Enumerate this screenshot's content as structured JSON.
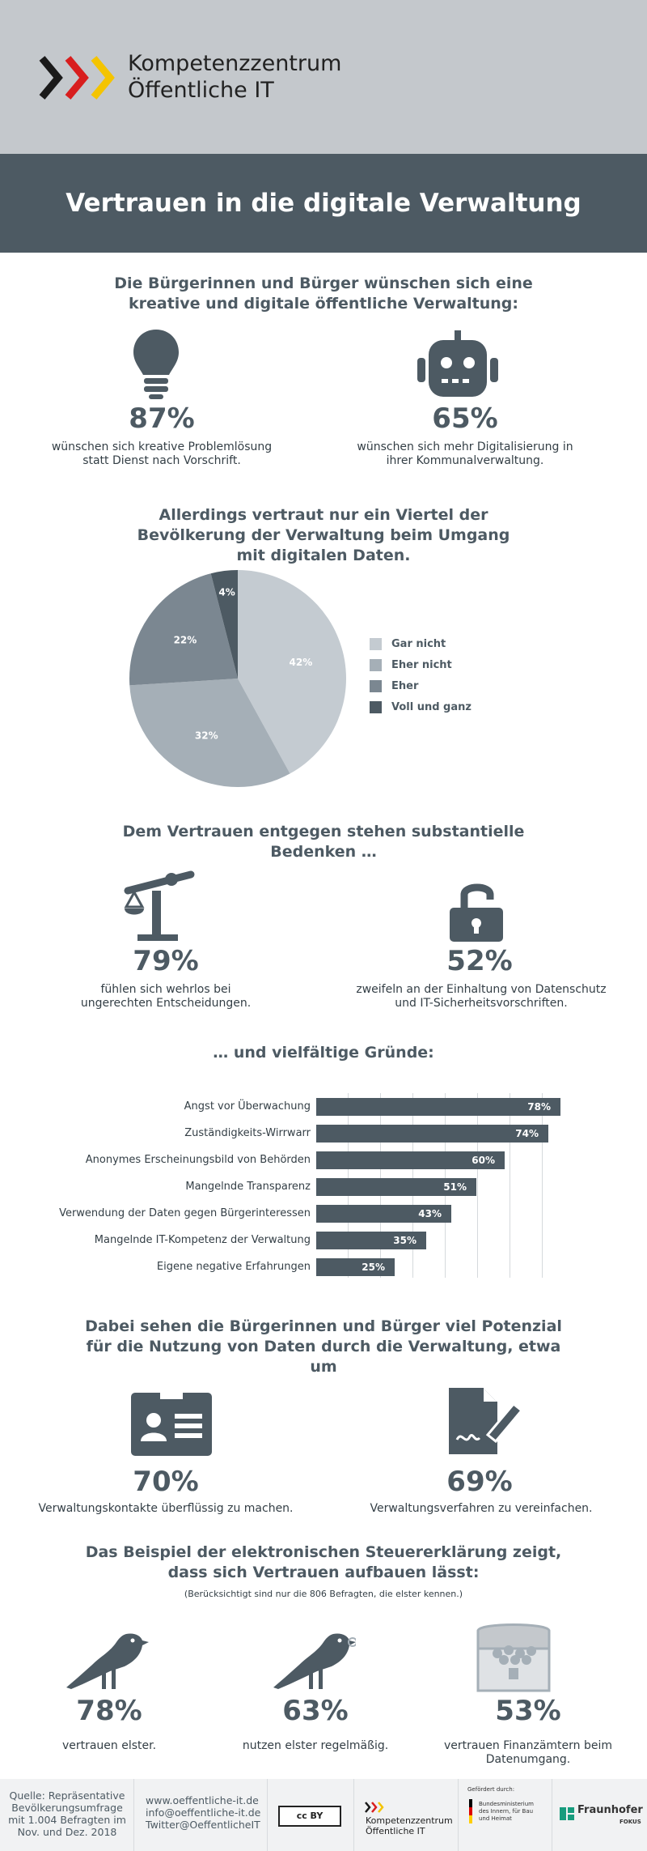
{
  "header": {
    "brand_line1": "Kompetenzzentrum",
    "brand_line2": "Öffentliche IT",
    "title": "Vertrauen in die digitale Verwaltung"
  },
  "section1": {
    "heading": "Die Bürgerinnen und Bürger wünschen sich eine kreative und digitale öffentliche Verwaltung:",
    "stats": [
      {
        "value": "87%",
        "caption": "wünschen sich kreative Problemlösung statt Dienst nach Vorschrift.",
        "icon": "lightbulb-icon"
      },
      {
        "value": "65%",
        "caption": "wünschen sich mehr Digitalisierung in ihrer Kommunalverwaltung.",
        "icon": "robot-icon"
      }
    ]
  },
  "section2": {
    "heading": "Allerdings vertraut nur ein Viertel der Bevölkerung der Verwaltung beim Umgang mit digitalen Daten."
  },
  "chart_data": [
    {
      "type": "pie",
      "categories": [
        "Gar nicht",
        "Eher nicht",
        "Eher",
        "Voll und ganz"
      ],
      "values": [
        42,
        32,
        22,
        4
      ],
      "labels": [
        "42%",
        "32%",
        "22%",
        "4%"
      ],
      "colors": [
        "#c4cbd1",
        "#a5afb7",
        "#7b8791",
        "#4d5a63"
      ],
      "legend": "right"
    },
    {
      "type": "bar",
      "orientation": "horizontal",
      "categories": [
        "Angst vor Überwachung",
        "Zuständigkeits-Wirrwarr",
        "Anonymes Erscheinungsbild von Behörden",
        "Mangelnde Transparenz",
        "Verwendung der Daten gegen Bürgerinteressen",
        "Mangelnde IT-Kompetenz der Verwaltung",
        "Eigene negative Erfahrungen"
      ],
      "values": [
        78,
        74,
        60,
        51,
        43,
        35,
        25
      ],
      "labels": [
        "78%",
        "74%",
        "60%",
        "51%",
        "43%",
        "35%",
        "25%"
      ],
      "xlim": [
        0,
        80
      ],
      "grid": true
    }
  ],
  "section3": {
    "heading": "Dem Vertrauen entgegen stehen substantielle Bedenken …",
    "stats": [
      {
        "value": "79%",
        "caption": "fühlen sich wehrlos bei ungerechten Entscheidungen.",
        "icon": "scale-icon"
      },
      {
        "value": "52%",
        "caption": "zweifeln an der Einhaltung von Datenschutz und IT-Sicherheitsvorschriften.",
        "icon": "open-lock-icon"
      }
    ]
  },
  "section4": {
    "heading": "… und vielfältige Gründe:"
  },
  "section5": {
    "heading": "Dabei sehen die Bürgerinnen und Bürger viel Potenzial für die Nutzung von Daten durch die Verwaltung, etwa um",
    "stats": [
      {
        "value": "70%",
        "caption": "Verwaltungskontakte überflüssig zu machen.",
        "icon": "id-card-icon"
      },
      {
        "value": "69%",
        "caption": "Verwaltungsverfahren zu vereinfachen.",
        "icon": "document-sign-icon"
      }
    ]
  },
  "section6": {
    "heading": "Das Beispiel der elektronischen Steuererklärung zeigt, dass sich Vertrauen aufbauen lässt:",
    "note": "(Berücksichtigt sind nur die 806 Befragten, die elster kennen.)",
    "stats": [
      {
        "value": "78%",
        "caption": "vertrauen elster.",
        "icon": "bird-icon"
      },
      {
        "value": "63%",
        "caption": "nutzen elster regelmäßig.",
        "icon": "bird-ring-icon"
      },
      {
        "value": "53%",
        "caption": "vertrauen Finanzämtern beim Datenumgang.",
        "icon": "treasure-chest-icon"
      }
    ]
  },
  "footer": {
    "source": "Quelle: Repräsentative Bevölkerungsumfrage mit 1.004 Befragten im Nov. und Dez. 2018",
    "web": "www.oeffentliche-it.de",
    "mail": "info@oeffentliche-it.de",
    "twitter": "Twitter@OeffentlicheIT",
    "license": "cc BY",
    "brand_line1": "Kompetenzzentrum",
    "brand_line2": "Öffentliche IT",
    "funded_by": "Gefördert durch:",
    "ministry": "Bundesministerium des Innern, für Bau und Heimat",
    "fraunhofer": "Fraunhofer",
    "fokus": "FOKUS"
  }
}
